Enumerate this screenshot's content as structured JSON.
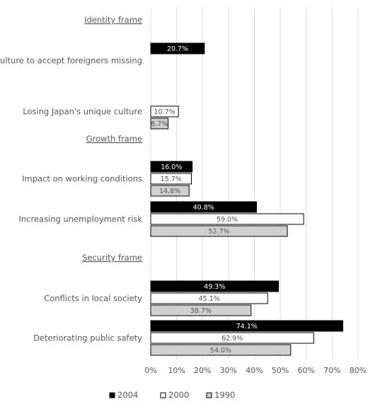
{
  "chart_data": {
    "type": "bar",
    "orientation": "horizontal",
    "xlim": [
      0,
      80
    ],
    "x_ticks": [
      "0%",
      "10%",
      "20%",
      "30%",
      "40%",
      "50%",
      "60%",
      "70%",
      "80%"
    ],
    "grid": "vertical",
    "legend_position": "bottom",
    "series": [
      {
        "name": "2004",
        "color": "#000000",
        "label_color": "#ffffff"
      },
      {
        "name": "2000",
        "color": "#ffffff",
        "label_color": "#555555"
      },
      {
        "name": "1990",
        "color": "#d0d0d0",
        "label_color": "#555555"
      }
    ],
    "rows": [
      {
        "label": "Identity frame",
        "heading": true,
        "values": [
          null,
          null,
          null
        ],
        "value_labels": [
          null,
          null,
          null
        ]
      },
      {
        "label": "Culture to accept foreigners missing",
        "heading": false,
        "values": [
          20.7,
          null,
          null
        ],
        "value_labels": [
          "20.7%",
          null,
          null
        ]
      },
      {
        "label": "Losing Japan's unique culture",
        "heading": false,
        "values": [
          null,
          10.7,
          6.7
        ],
        "value_labels": [
          null,
          "10.7%",
          "6.7%"
        ]
      },
      {
        "label": "Growth frame",
        "heading": true,
        "values": [
          null,
          null,
          null
        ],
        "value_labels": [
          null,
          null,
          null
        ]
      },
      {
        "label": "Impact on working conditions",
        "heading": false,
        "values": [
          16.0,
          15.7,
          14.8
        ],
        "value_labels": [
          "16.0%",
          "15.7%",
          "14.8%"
        ]
      },
      {
        "label": "Increasing unemployment risk",
        "heading": false,
        "values": [
          40.8,
          59.0,
          52.7
        ],
        "value_labels": [
          "40.8%",
          "59.0%",
          "52.7%"
        ]
      },
      {
        "label": "Security frame",
        "heading": true,
        "values": [
          null,
          null,
          null
        ],
        "value_labels": [
          null,
          null,
          null
        ]
      },
      {
        "label": "Conflicts in local society",
        "heading": false,
        "values": [
          49.3,
          45.1,
          38.7
        ],
        "value_labels": [
          "49.3%",
          "45.1%",
          "38.7%"
        ]
      },
      {
        "label": "Deteriorating public safety",
        "heading": false,
        "values": [
          74.1,
          62.9,
          54.0
        ],
        "value_labels": [
          "74.1%",
          "62.9%",
          "54.0%"
        ]
      }
    ]
  }
}
